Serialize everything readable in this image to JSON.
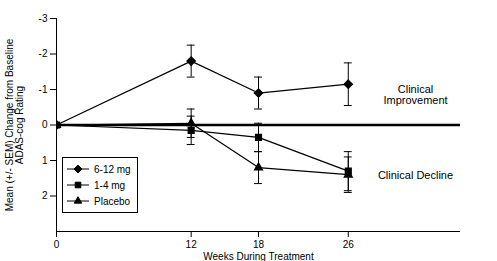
{
  "chart_data": {
    "type": "line",
    "x_label": "Weeks During Treatment",
    "y_label": "Mean (+/- SEM) Change from Baseline\nADAS-cog Rating",
    "annotations": [
      "Clinical\nImprovement",
      "Clinical Decline"
    ],
    "x": [
      0,
      12,
      18,
      26
    ],
    "xlim": [
      0,
      36
    ],
    "xticks": [
      0,
      12,
      18,
      26
    ],
    "ylim": [
      3,
      -3
    ],
    "yticks": [
      -3,
      -2,
      -1,
      0,
      1,
      2
    ],
    "legend": "bottom-left",
    "series": [
      {
        "name": "6-12 mg",
        "color": "#000000",
        "marker": "diamond",
        "line_style": "solid",
        "values": [
          0,
          -1.8,
          -0.9,
          -1.15
        ],
        "errors": [
          null,
          0.45,
          0.45,
          0.6
        ]
      },
      {
        "name": "1-4 mg",
        "color": "#000000",
        "marker": "square",
        "line_style": "solid",
        "values": [
          0,
          0.15,
          0.35,
          1.3
        ],
        "errors": [
          null,
          0.4,
          0.4,
          0.55
        ]
      },
      {
        "name": "Placebo",
        "color": "#000000",
        "marker": "triangle",
        "line_style": "solid",
        "values": [
          0,
          -0.05,
          1.2,
          1.4
        ],
        "errors": [
          null,
          0.4,
          0.45,
          0.5
        ]
      }
    ]
  }
}
